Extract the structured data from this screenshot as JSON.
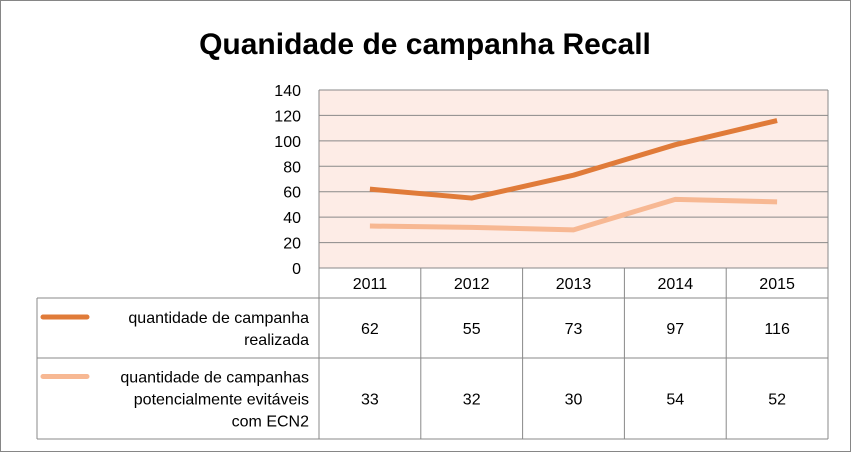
{
  "chart_data": {
    "type": "line",
    "title": "Quanidade de campanha Recall",
    "xlabel": "",
    "ylabel": "",
    "categories": [
      "2011",
      "2012",
      "2013",
      "2014",
      "2015"
    ],
    "ylim": [
      0,
      140
    ],
    "yticks": [
      "0",
      "20",
      "40",
      "60",
      "80",
      "100",
      "120",
      "140"
    ],
    "grid": true,
    "legend": "data-table-left",
    "plot_background": "#fdece6",
    "series": [
      {
        "name": "quantidade de campanha realizada",
        "name_lines": [
          "quantidade de campanha",
          "realizada"
        ],
        "color": "#e07b39",
        "values": [
          62,
          55,
          73,
          97,
          116
        ],
        "labels": [
          "62",
          "55",
          "73",
          "97",
          "116"
        ]
      },
      {
        "name": "quantidade de campanhas potencialmente evitáveis com ECN2",
        "name_lines": [
          "quantidade de campanhas",
          "potencialmente evitáveis",
          "com ECN2"
        ],
        "color": "#f7b893",
        "values": [
          33,
          32,
          30,
          54,
          52
        ],
        "labels": [
          "33",
          "32",
          "30",
          "54",
          "52"
        ]
      }
    ]
  }
}
